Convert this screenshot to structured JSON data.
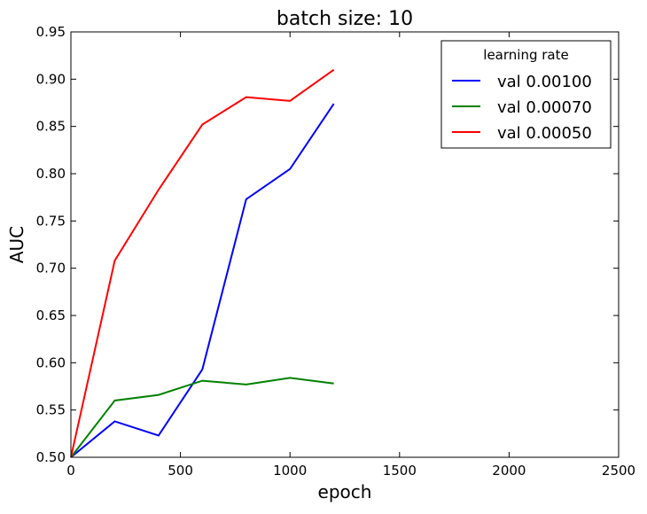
{
  "chart_data": {
    "type": "line",
    "title": "batch size: 10",
    "xlabel": "epoch",
    "ylabel": "AUC",
    "xlim": [
      0,
      2500
    ],
    "ylim": [
      0.5,
      0.95
    ],
    "xticks": [
      0,
      500,
      1000,
      1500,
      2000,
      2500
    ],
    "xtick_labels": [
      "0",
      "500",
      "1000",
      "1500",
      "2000",
      "2500"
    ],
    "yticks": [
      0.5,
      0.55,
      0.6,
      0.65,
      0.7,
      0.75,
      0.8,
      0.85,
      0.9,
      0.95
    ],
    "ytick_labels": [
      "0.50",
      "0.55",
      "0.60",
      "0.65",
      "0.70",
      "0.75",
      "0.80",
      "0.85",
      "0.90",
      "0.95"
    ],
    "grid": false,
    "legend": {
      "title": "learning rate",
      "placement": "top-right"
    },
    "x": [
      0,
      200,
      400,
      600,
      800,
      1000,
      1200
    ],
    "series": [
      {
        "name": "val 0.00100",
        "color": "#0000ff",
        "values": [
          0.5,
          0.538,
          0.523,
          0.593,
          0.773,
          0.805,
          0.874
        ]
      },
      {
        "name": "val 0.00070",
        "color": "#008000",
        "values": [
          0.5,
          0.56,
          0.566,
          0.581,
          0.577,
          0.584,
          0.578
        ]
      },
      {
        "name": "val 0.00050",
        "color": "#ff0000",
        "values": [
          0.5,
          0.708,
          0.783,
          0.852,
          0.881,
          0.877,
          0.91
        ]
      }
    ]
  }
}
